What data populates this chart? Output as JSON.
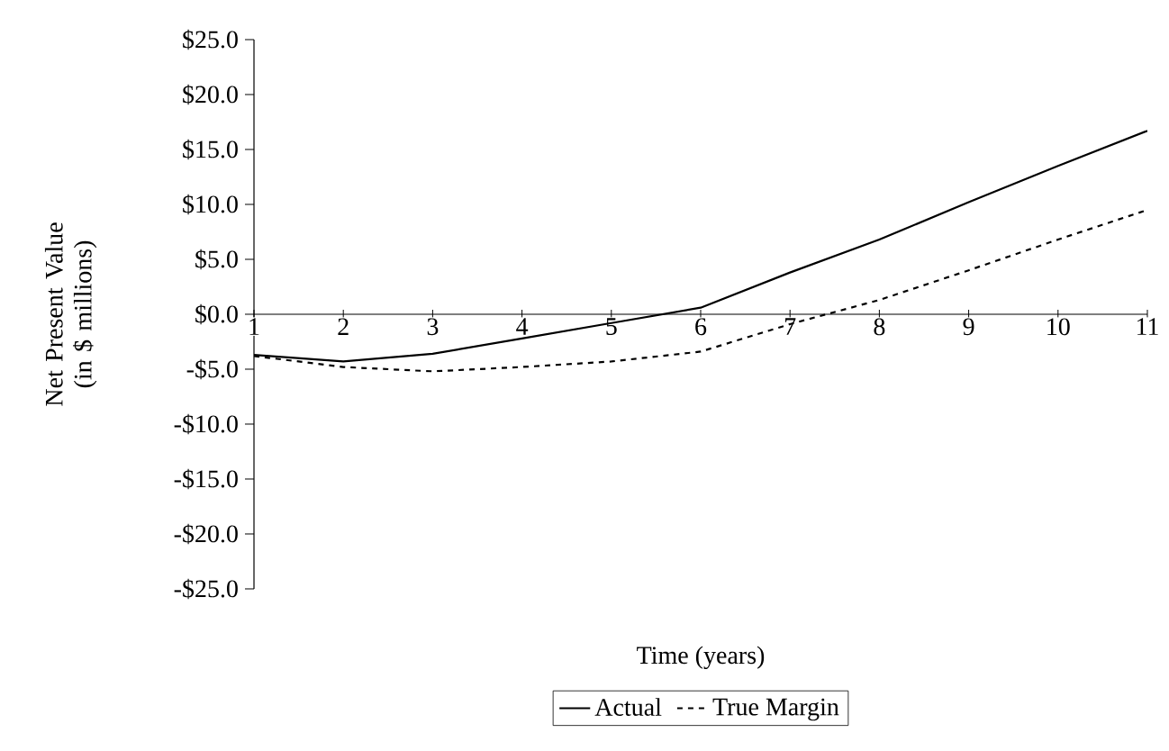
{
  "chart_data": {
    "type": "line",
    "xlabel": "Time (years)",
    "ylabel": "Net Present Value (in $ millions)",
    "x": [
      1,
      2,
      3,
      4,
      5,
      6,
      7,
      8,
      9,
      10,
      11
    ],
    "series": [
      {
        "name": "Actual",
        "color": "#000000",
        "line_style": "solid",
        "values": [
          -3.7,
          -4.3,
          -3.6,
          -2.2,
          -0.8,
          0.6,
          3.8,
          6.8,
          10.2,
          13.5,
          16.7
        ]
      },
      {
        "name": "True Margin",
        "color": "#000000",
        "line_style": "dashed",
        "values": [
          -3.8,
          -4.8,
          -5.2,
          -4.8,
          -4.3,
          -3.4,
          -0.9,
          1.3,
          4.0,
          6.8,
          9.5
        ]
      }
    ],
    "xlim": [
      1,
      11
    ],
    "xticks": [
      1,
      2,
      3,
      4,
      5,
      6,
      7,
      8,
      9,
      10,
      11
    ],
    "ylim": [
      -25,
      25
    ],
    "yticks": [
      {
        "value": -25,
        "label": "-$25.0"
      },
      {
        "value": -20,
        "label": "-$20.0"
      },
      {
        "value": -15,
        "label": "-$15.0"
      },
      {
        "value": -10,
        "label": "-$10.0"
      },
      {
        "value": -5,
        "label": "-$5.0"
      },
      {
        "value": 0,
        "label": "$0.0"
      },
      {
        "value": 5,
        "label": "$5.0"
      },
      {
        "value": 10,
        "label": "$10.0"
      },
      {
        "value": 15,
        "label": "$15.0"
      },
      {
        "value": 20,
        "label": "$20.0"
      },
      {
        "value": 25,
        "label": "$25.0"
      }
    ],
    "legend": "bottom",
    "marker": "none",
    "grid": false
  }
}
